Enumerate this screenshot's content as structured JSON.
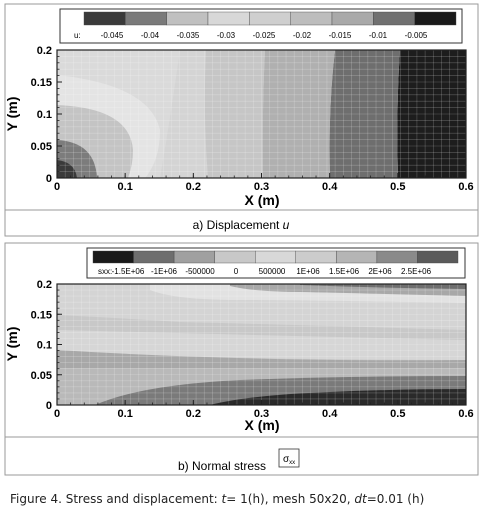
{
  "chart_data": [
    {
      "type": "contour",
      "variable": "u",
      "legend_label": "u:",
      "legend_levels": [
        "-0.045",
        "-0.04",
        "-0.035",
        "-0.03",
        "-0.025",
        "-0.02",
        "-0.015",
        "-0.01",
        "-0.005"
      ],
      "colors": [
        "#3a3a3a",
        "#7a7a7a",
        "#c0c0c0",
        "#d8d8d8",
        "#cfcfcf",
        "#bdbdbd",
        "#a9a9a9",
        "#707070",
        "#1a1a1a"
      ],
      "xlabel": "X (m)",
      "ylabel": "Y (m)",
      "xlim": [
        0,
        0.6
      ],
      "ylim": [
        0,
        0.2
      ],
      "xticks": [
        "0",
        "0.1",
        "0.2",
        "0.3",
        "0.4",
        "0.5",
        "0.6"
      ],
      "yticks": [
        "0",
        "0.05",
        "0.1",
        "0.15",
        "0.2"
      ],
      "mesh": [
        50,
        20
      ],
      "caption_prefix": "a) Displacement ",
      "caption_symbol": "u"
    },
    {
      "type": "contour",
      "variable": "sxx",
      "legend_label": "sxx:",
      "legend_levels": [
        "-1.5E+06",
        "-1E+06",
        "-500000",
        "0",
        "500000",
        "1E+06",
        "1.5E+06",
        "2E+06",
        "2.5E+06"
      ],
      "colors": [
        "#1a1a1a",
        "#6e6e6e",
        "#a0a0a0",
        "#c8c8c8",
        "#d8d8d8",
        "#cccccc",
        "#b5b5b5",
        "#8a8a8a",
        "#5a5a5a"
      ],
      "xlabel": "X (m)",
      "ylabel": "Y (m)",
      "xlim": [
        0,
        0.6
      ],
      "ylim": [
        0,
        0.2
      ],
      "xticks": [
        "0",
        "0.1",
        "0.2",
        "0.3",
        "0.4",
        "0.5",
        "0.6"
      ],
      "yticks": [
        "0",
        "0.05",
        "0.1",
        "0.15",
        "0.2"
      ],
      "mesh": [
        50,
        20
      ],
      "caption_prefix": "b) Normal stress ",
      "caption_symbol": "σ",
      "caption_subscript": "xx"
    }
  ],
  "figure_caption": {
    "prefix": "Figure 4. Stress and displacement: ",
    "t_symbol": "t",
    "t_value": "= 1",
    "t_unit": "(h), mesh 50x20, ",
    "dt_symbol": "dt",
    "dt_value": "=0.01 (h)"
  }
}
